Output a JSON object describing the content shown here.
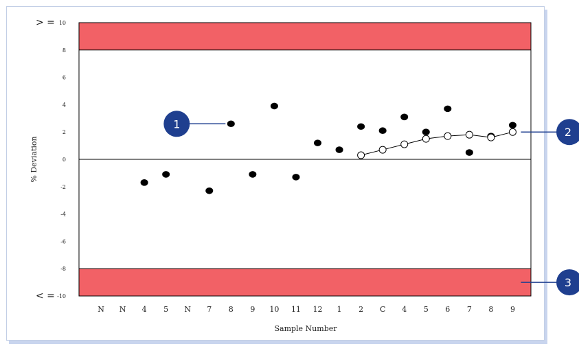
{
  "chart_data": {
    "type": "scatter",
    "xlabel": "Sample Number",
    "ylabel": "% Deviation",
    "ylim": [
      -10,
      10
    ],
    "y_ticks": [
      "10",
      "8",
      "6",
      "4",
      "2",
      "0",
      "-2",
      "-4",
      "-6",
      "-8",
      "-10"
    ],
    "categories": [
      "N",
      "N",
      "4",
      "5",
      "N",
      "7",
      "8",
      "9",
      "10",
      "11",
      "12",
      "1",
      "2",
      "C",
      "4",
      "5",
      "6",
      "7",
      "8",
      "9"
    ],
    "upper_bound_label": "> =",
    "lower_bound_label": "< =",
    "upper_band": [
      8,
      10
    ],
    "lower_band": [
      -10,
      -8
    ],
    "band_color": "#f26166",
    "series": [
      {
        "marker": "filled-circle",
        "points": [
          {
            "x": 2,
            "y": -1.7
          },
          {
            "x": 3,
            "y": -1.1
          },
          {
            "x": 5,
            "y": -2.3
          },
          {
            "x": 6,
            "y": 2.6
          },
          {
            "x": 7,
            "y": -1.1
          },
          {
            "x": 8,
            "y": 3.9
          },
          {
            "x": 9,
            "y": -1.3
          },
          {
            "x": 10,
            "y": 1.2
          },
          {
            "x": 11,
            "y": 0.7
          },
          {
            "x": 12,
            "y": 2.4
          },
          {
            "x": 13,
            "y": 2.1
          },
          {
            "x": 14,
            "y": 3.1
          },
          {
            "x": 15,
            "y": 2.0
          },
          {
            "x": 16,
            "y": 3.7
          },
          {
            "x": 17,
            "y": 0.5
          },
          {
            "x": 18,
            "y": 1.7
          },
          {
            "x": 19,
            "y": 2.5
          }
        ]
      },
      {
        "marker": "open-circle-line",
        "points": [
          {
            "x": 12,
            "y": 0.3
          },
          {
            "x": 13,
            "y": 0.7
          },
          {
            "x": 14,
            "y": 1.1
          },
          {
            "x": 15,
            "y": 1.5
          },
          {
            "x": 16,
            "y": 1.7
          },
          {
            "x": 17,
            "y": 1.8
          },
          {
            "x": 18,
            "y": 1.6
          },
          {
            "x": 19,
            "y": 2.0
          }
        ]
      }
    ],
    "callouts": [
      {
        "label": "1",
        "target_x": 6,
        "target_y": 2.6,
        "side": "left"
      },
      {
        "label": "2",
        "target_x": 19,
        "target_y": 2.0,
        "side": "right"
      },
      {
        "label": "3",
        "target_x": 19,
        "target_y": -9,
        "side": "right"
      }
    ],
    "callout_color": "#1f3f8f",
    "grid": false
  }
}
